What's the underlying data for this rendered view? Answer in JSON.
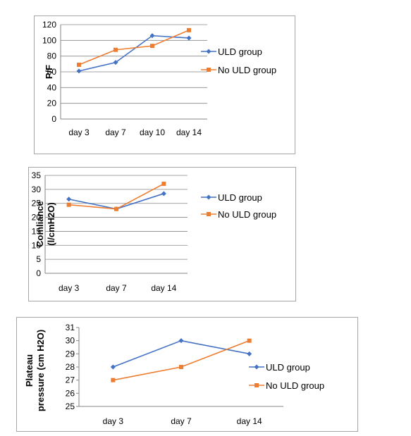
{
  "chart_data": [
    {
      "type": "line",
      "ylabel": "P/F",
      "categories": [
        "day 3",
        "day 7",
        "day 10",
        "day 14"
      ],
      "ylim": [
        0,
        120
      ],
      "yticks": [
        0,
        20,
        40,
        60,
        80,
        100,
        120
      ],
      "grid": true,
      "legend_position": "right",
      "series": [
        {
          "name": "ULD group",
          "color": "#4472c4",
          "marker": "diamond",
          "values": [
            61,
            72,
            106,
            103
          ]
        },
        {
          "name": "No ULD group",
          "color": "#ed7d31",
          "marker": "square",
          "values": [
            69,
            88,
            93,
            113
          ]
        }
      ]
    },
    {
      "type": "line",
      "ylabel": "Comliance (l/cmH2O)",
      "categories": [
        "day 3",
        "day 7",
        "day 14"
      ],
      "ylim": [
        0,
        35
      ],
      "yticks": [
        0,
        5,
        10,
        15,
        20,
        25,
        30,
        35
      ],
      "grid": true,
      "legend_position": "right",
      "series": [
        {
          "name": "ULD group",
          "color": "#4472c4",
          "marker": "diamond",
          "values": [
            26.5,
            23,
            28.5
          ]
        },
        {
          "name": "No ULD group",
          "color": "#ed7d31",
          "marker": "square",
          "values": [
            24.5,
            23,
            32
          ]
        }
      ]
    },
    {
      "type": "line",
      "ylabel": "Plateau pressure (cm H2O)",
      "categories": [
        "day 3",
        "day 7",
        "day 14"
      ],
      "ylim": [
        25,
        31
      ],
      "yticks": [
        25,
        26,
        27,
        28,
        29,
        30,
        31
      ],
      "grid": false,
      "legend_position": "right",
      "series": [
        {
          "name": "ULD group",
          "color": "#4472c4",
          "marker": "diamond",
          "values": [
            28,
            30,
            29
          ]
        },
        {
          "name": "No ULD group",
          "color": "#ed7d31",
          "marker": "square",
          "values": [
            27,
            28,
            30
          ]
        }
      ]
    }
  ]
}
